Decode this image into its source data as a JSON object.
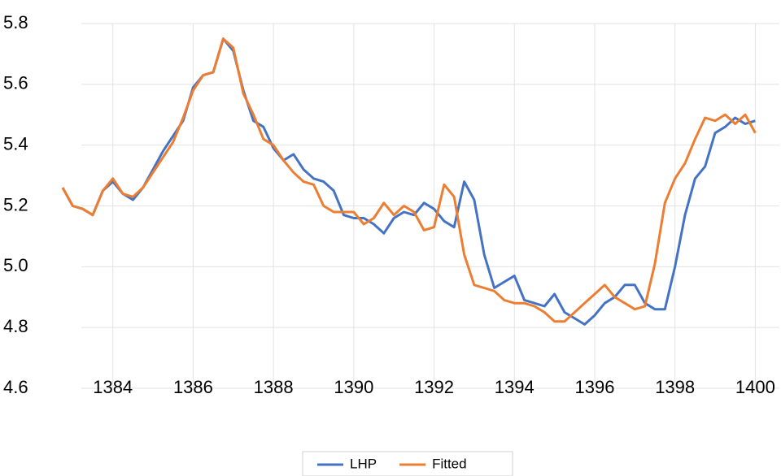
{
  "chart_data": {
    "type": "line",
    "x": [
      1382.75,
      1383,
      1383.25,
      1383.5,
      1383.75,
      1384,
      1384.25,
      1384.5,
      1384.75,
      1385,
      1385.25,
      1385.5,
      1385.75,
      1386,
      1386.25,
      1386.5,
      1386.75,
      1387,
      1387.25,
      1387.5,
      1387.75,
      1388,
      1388.25,
      1388.5,
      1388.75,
      1389,
      1389.25,
      1389.5,
      1389.75,
      1390,
      1390.25,
      1390.5,
      1390.75,
      1391,
      1391.25,
      1391.5,
      1391.75,
      1392,
      1392.25,
      1392.5,
      1392.75,
      1393,
      1393.25,
      1393.5,
      1393.75,
      1394,
      1394.25,
      1394.5,
      1394.75,
      1395,
      1395.25,
      1395.5,
      1395.75,
      1396,
      1396.25,
      1396.5,
      1396.75,
      1397,
      1397.25,
      1397.5,
      1397.75,
      1398,
      1398.25,
      1398.5,
      1398.75,
      1399,
      1399.25,
      1399.5,
      1399.75,
      1400
    ],
    "series": [
      {
        "name": "LHP",
        "color": "#4472c4",
        "values": [
          5.26,
          5.2,
          5.19,
          5.17,
          5.25,
          5.28,
          5.24,
          5.22,
          5.26,
          5.32,
          5.38,
          5.43,
          5.48,
          5.59,
          5.63,
          5.64,
          5.75,
          5.71,
          5.58,
          5.48,
          5.46,
          5.39,
          5.35,
          5.37,
          5.32,
          5.29,
          5.28,
          5.25,
          5.17,
          5.16,
          5.16,
          5.14,
          5.11,
          5.16,
          5.18,
          5.17,
          5.21,
          5.19,
          5.15,
          5.13,
          5.28,
          5.22,
          5.04,
          4.93,
          4.95,
          4.97,
          4.89,
          4.88,
          4.87,
          4.91,
          4.85,
          4.83,
          4.81,
          4.84,
          4.88,
          4.9,
          4.94,
          4.94,
          4.88,
          4.86,
          4.86,
          5.0,
          5.17,
          5.29,
          5.33,
          5.44,
          5.46,
          5.49,
          5.47,
          5.48
        ]
      },
      {
        "name": "Fitted",
        "color": "#ed7d31",
        "values": [
          5.26,
          5.2,
          5.19,
          5.17,
          5.25,
          5.29,
          5.24,
          5.23,
          5.26,
          5.31,
          5.36,
          5.41,
          5.49,
          5.58,
          5.63,
          5.64,
          5.75,
          5.72,
          5.57,
          5.5,
          5.42,
          5.4,
          5.35,
          5.31,
          5.28,
          5.27,
          5.2,
          5.18,
          5.18,
          5.18,
          5.14,
          5.16,
          5.21,
          5.17,
          5.2,
          5.18,
          5.12,
          5.13,
          5.27,
          5.23,
          5.04,
          4.94,
          4.93,
          4.92,
          4.89,
          4.88,
          4.88,
          4.87,
          4.85,
          4.82,
          4.82,
          4.85,
          4.88,
          4.91,
          4.94,
          4.9,
          4.88,
          4.86,
          4.87,
          5.01,
          5.21,
          5.29,
          5.34,
          5.42,
          5.49,
          5.48,
          5.5,
          5.47,
          5.5,
          5.44
        ]
      }
    ],
    "xlim": [
      1382,
      1400.6
    ],
    "xticks": [
      1384,
      1386,
      1388,
      1390,
      1392,
      1394,
      1396,
      1398,
      1400
    ],
    "ylim": [
      4.6,
      5.8
    ],
    "yticks": [
      4.6,
      4.8,
      {
        "value": 5.0,
        "label": "5.0"
      },
      5.2,
      5.4,
      5.6,
      5.8
    ],
    "grid": true,
    "legend": "bottom"
  }
}
